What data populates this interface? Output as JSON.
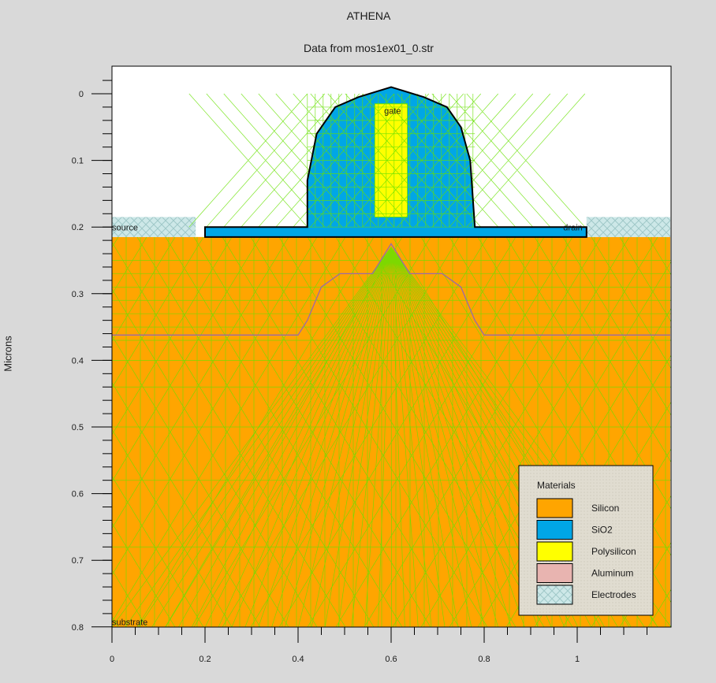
{
  "window": {
    "title": "ATHENA",
    "subtitle": "Data from mos1ex01_0.str"
  },
  "chart_data": {
    "type": "cross-section",
    "title": "ATHENA",
    "subtitle": "Data from mos1ex01_0.str",
    "xlabel": "",
    "ylabel": "Microns",
    "xlim": [
      0,
      1.2
    ],
    "ylim": [
      0.8,
      -0.04
    ],
    "x_ticks": [
      0,
      0.2,
      0.4,
      0.6,
      0.8,
      1
    ],
    "x_tick_labels": [
      "0",
      "0.2",
      "0.4",
      "0.6",
      "0.8",
      "1"
    ],
    "y_ticks": [
      0,
      0.1,
      0.2,
      0.3,
      0.4,
      0.5,
      0.6,
      0.7,
      0.8
    ],
    "y_tick_labels": [
      "0",
      "0.1",
      "0.2",
      "0.3",
      "0.4",
      "0.5",
      "0.6",
      "0.7",
      "0.8"
    ],
    "grid": false,
    "regions": [
      {
        "material": "Silicon",
        "polygon": [
          [
            0,
            0.215
          ],
          [
            1.2,
            0.215
          ],
          [
            1.2,
            0.8
          ],
          [
            0,
            0.8
          ]
        ]
      },
      {
        "material": "SiO2",
        "polygon": [
          [
            0.2,
            0.215
          ],
          [
            0.2,
            0.2
          ],
          [
            0.42,
            0.2
          ],
          [
            0.42,
            0.13
          ],
          [
            0.44,
            0.06
          ],
          [
            0.48,
            0.02
          ],
          [
            0.53,
            0.005
          ],
          [
            0.6,
            -0.01
          ],
          [
            0.67,
            0.005
          ],
          [
            0.72,
            0.02
          ],
          [
            0.75,
            0.05
          ],
          [
            0.77,
            0.1
          ],
          [
            0.78,
            0.2
          ],
          [
            1.02,
            0.2
          ],
          [
            1.02,
            0.215
          ]
        ]
      },
      {
        "material": "Polysilicon",
        "polygon": [
          [
            0.565,
            0.015
          ],
          [
            0.635,
            0.015
          ],
          [
            0.635,
            0.185
          ],
          [
            0.565,
            0.185
          ]
        ]
      },
      {
        "material": "Electrodes",
        "polygon": [
          [
            0,
            0.185
          ],
          [
            0.18,
            0.185
          ],
          [
            0.18,
            0.215
          ],
          [
            0,
            0.215
          ]
        ]
      },
      {
        "material": "Electrodes",
        "polygon": [
          [
            1.02,
            0.185
          ],
          [
            1.2,
            0.185
          ],
          [
            1.2,
            0.215
          ],
          [
            1.02,
            0.215
          ]
        ]
      }
    ],
    "junction": [
      [
        0,
        0.362
      ],
      [
        0.4,
        0.362
      ],
      [
        0.42,
        0.34
      ],
      [
        0.45,
        0.29
      ],
      [
        0.49,
        0.27
      ],
      [
        0.56,
        0.27
      ],
      [
        0.6,
        0.225
      ],
      [
        0.64,
        0.27
      ],
      [
        0.71,
        0.27
      ],
      [
        0.75,
        0.29
      ],
      [
        0.78,
        0.34
      ],
      [
        0.8,
        0.362
      ],
      [
        1.2,
        0.362
      ]
    ],
    "region_labels": [
      {
        "text": "gate",
        "x": 0.585,
        "y": 0.03
      },
      {
        "text": "source",
        "x": 0.0,
        "y": 0.205
      },
      {
        "text": "drain",
        "x": 0.97,
        "y": 0.205
      },
      {
        "text": "substrate",
        "x": 0.0,
        "y": 0.797
      }
    ],
    "legend": {
      "title": "Materials",
      "position": "bottom-right",
      "items": [
        {
          "label": "Silicon",
          "color": "#ffa500"
        },
        {
          "label": "SiO2",
          "color": "#00a6e6"
        },
        {
          "label": "Polysilicon",
          "color": "#ffff00"
        },
        {
          "label": "Aluminum",
          "color": "#e8b4b0"
        },
        {
          "label": "Electrodes",
          "color": "#a8e0e0"
        }
      ]
    }
  },
  "colors": {
    "background": "#d9d9d9",
    "plot_background": "#ffffff",
    "mesh": "#66e000",
    "junction": "#9a6aa8",
    "outline": "#000000"
  }
}
